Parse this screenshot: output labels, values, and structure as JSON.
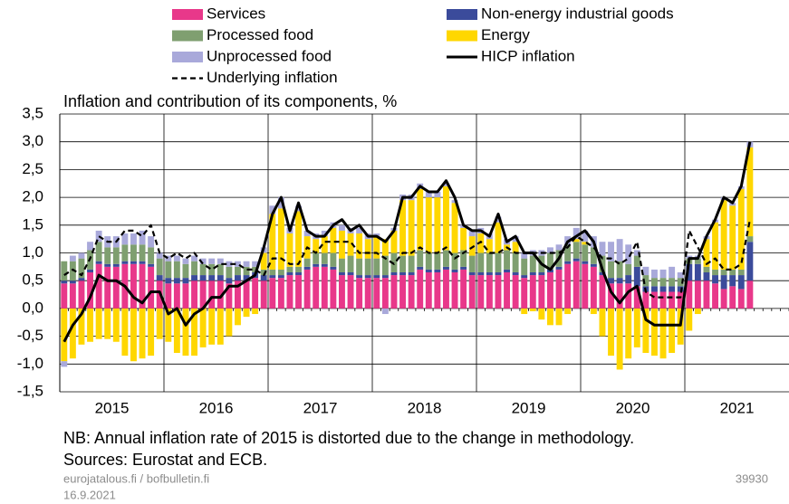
{
  "chart_data": {
    "type": "bar",
    "title": "Inflation and contribution of its components, %",
    "notes": [
      "NB: Annual inflation rate of 2015 is distorted due to the change in methodology.",
      "Sources: Eurostat and ECB."
    ],
    "footer": {
      "site": "eurojatalous.fi / bofbulletin.fi",
      "date": "16.9.2021",
      "code": "39930"
    },
    "years": [
      "2015",
      "2016",
      "2017",
      "2018",
      "2019",
      "2020",
      "2021"
    ],
    "ylim": [
      -1.5,
      3.5
    ],
    "yticks": [
      {
        "value": 3.5,
        "label": "3,5"
      },
      {
        "value": 3.0,
        "label": "3,0"
      },
      {
        "value": 2.5,
        "label": "2,5"
      },
      {
        "value": 2.0,
        "label": "2,0"
      },
      {
        "value": 1.5,
        "label": "1,5"
      },
      {
        "value": 1.0,
        "label": "1,0"
      },
      {
        "value": 0.5,
        "label": "0,5"
      },
      {
        "value": 0.0,
        "label": "0,0"
      },
      {
        "value": -0.5,
        "label": "-0,5"
      },
      {
        "value": -1.0,
        "label": "-1,0"
      },
      {
        "value": -1.5,
        "label": "-1,5"
      }
    ],
    "grid": true,
    "series": [
      {
        "name": "Services",
        "kind": "bar",
        "color": "#e8388a",
        "values": [
          0.45,
          0.45,
          0.5,
          0.65,
          0.8,
          0.75,
          0.75,
          0.8,
          0.8,
          0.8,
          0.75,
          0.5,
          0.45,
          0.45,
          0.45,
          0.5,
          0.5,
          0.5,
          0.5,
          0.45,
          0.5,
          0.5,
          0.55,
          0.5,
          0.55,
          0.55,
          0.6,
          0.6,
          0.7,
          0.75,
          0.75,
          0.7,
          0.6,
          0.6,
          0.55,
          0.55,
          0.55,
          0.55,
          0.6,
          0.6,
          0.6,
          0.7,
          0.65,
          0.65,
          0.7,
          0.65,
          0.7,
          0.6,
          0.6,
          0.6,
          0.6,
          0.65,
          0.6,
          0.55,
          0.6,
          0.6,
          0.65,
          0.7,
          0.8,
          0.85,
          0.8,
          0.75,
          0.6,
          0.45,
          0.45,
          0.45,
          0.4,
          0.3,
          0.3,
          0.3,
          0.3,
          0.3,
          0.5,
          0.5,
          0.5,
          0.45,
          0.35,
          0.4,
          0.35,
          0.5
        ]
      },
      {
        "name": "Non-energy industrial goods",
        "kind": "bar",
        "color": "#3b4b9b",
        "values": [
          0.05,
          0.05,
          0.05,
          0.05,
          0.05,
          0.05,
          0.05,
          0.05,
          0.05,
          0.05,
          0.05,
          0.1,
          0.1,
          0.1,
          0.1,
          0.1,
          0.1,
          0.1,
          0.1,
          0.1,
          0.1,
          0.1,
          0.1,
          0.1,
          0.05,
          0.05,
          0.05,
          0.05,
          0.05,
          0.05,
          0.05,
          0.05,
          0.05,
          0.05,
          0.05,
          0.05,
          0.05,
          0.05,
          0.05,
          0.05,
          0.05,
          0.05,
          0.05,
          0.05,
          0.05,
          0.05,
          0.05,
          0.05,
          0.05,
          0.05,
          0.05,
          0.05,
          0.05,
          0.05,
          0.05,
          0.05,
          0.05,
          0.05,
          0.05,
          0.05,
          0.05,
          0.05,
          0.05,
          0.1,
          0.1,
          0.15,
          0.35,
          0.1,
          0.1,
          0.1,
          0.1,
          0.1,
          0.3,
          0.3,
          0.15,
          0.15,
          0.25,
          0.2,
          0.25,
          0.7
        ]
      },
      {
        "name": "Processed food",
        "kind": "bar",
        "color": "#7f9f70",
        "values": [
          0.35,
          0.35,
          0.35,
          0.35,
          0.35,
          0.3,
          0.3,
          0.3,
          0.3,
          0.3,
          0.3,
          0.3,
          0.3,
          0.3,
          0.25,
          0.25,
          0.2,
          0.2,
          0.2,
          0.2,
          0.15,
          0.15,
          0.1,
          0.1,
          0.1,
          0.1,
          0.1,
          0.1,
          0.15,
          0.2,
          0.2,
          0.25,
          0.25,
          0.3,
          0.3,
          0.3,
          0.3,
          0.35,
          0.35,
          0.3,
          0.3,
          0.3,
          0.3,
          0.3,
          0.3,
          0.3,
          0.3,
          0.3,
          0.35,
          0.35,
          0.35,
          0.35,
          0.35,
          0.3,
          0.3,
          0.3,
          0.3,
          0.3,
          0.3,
          0.3,
          0.3,
          0.3,
          0.3,
          0.3,
          0.3,
          0.2,
          0.2,
          0.2,
          0.15,
          0.15,
          0.15,
          0.15,
          0.1,
          0.1,
          0.1,
          0.1,
          0.1,
          0.1,
          0.1,
          0.1
        ]
      },
      {
        "name": "Energy",
        "kind": "bar",
        "color": "#ffd700",
        "values": [
          -0.95,
          -0.9,
          -0.65,
          -0.6,
          -0.55,
          -0.55,
          -0.6,
          -0.85,
          -0.95,
          -0.9,
          -0.85,
          -0.55,
          -0.6,
          -0.8,
          -0.85,
          -0.85,
          -0.7,
          -0.65,
          -0.65,
          -0.5,
          -0.3,
          -0.15,
          -0.1,
          0.3,
          1.0,
          1.1,
          0.6,
          1.0,
          0.4,
          0.25,
          0.3,
          0.45,
          0.5,
          0.4,
          0.45,
          0.35,
          0.4,
          0.3,
          0.4,
          1.0,
          1.0,
          1.1,
          1.0,
          1.0,
          1.15,
          0.9,
          0.4,
          0.35,
          0.35,
          0.25,
          0.55,
          0.1,
          0.2,
          -0.1,
          -0.05,
          -0.2,
          -0.3,
          -0.3,
          -0.1,
          0.05,
          0.05,
          -0.1,
          -0.5,
          -0.85,
          -1.1,
          -0.9,
          -0.7,
          -0.8,
          -0.85,
          -0.9,
          -0.8,
          -0.65,
          -0.4,
          -0.1,
          0.5,
          0.85,
          1.25,
          1.15,
          1.45,
          1.6
        ]
      },
      {
        "name": "Unprocessed food",
        "kind": "bar",
        "color": "#a9a9da",
        "values": [
          -0.1,
          0.1,
          0.1,
          0.15,
          0.2,
          0.2,
          0.2,
          0.2,
          0.2,
          0.25,
          0.2,
          0.1,
          0.1,
          0.1,
          0.1,
          0.1,
          0.1,
          0.1,
          0.1,
          0.1,
          0.1,
          0.1,
          0.1,
          0.1,
          0.15,
          0.2,
          0.1,
          0.1,
          0.1,
          0.1,
          0.1,
          0.1,
          0.1,
          0.1,
          0.1,
          0.1,
          0.05,
          -0.1,
          0.05,
          0.1,
          0.1,
          0.1,
          0.1,
          0.1,
          0.05,
          0.05,
          0.05,
          0.1,
          0.1,
          0.1,
          0.1,
          0.1,
          0.1,
          0.1,
          0.1,
          0.1,
          0.1,
          0.1,
          0.15,
          0.2,
          0.2,
          0.2,
          0.25,
          0.35,
          0.4,
          0.35,
          0.1,
          0.15,
          0.15,
          0.15,
          0.2,
          0.1,
          0.05,
          0.05,
          0.05,
          0.05,
          0.05,
          0.05,
          0.05,
          0.1
        ]
      },
      {
        "name": "HICP inflation",
        "kind": "line",
        "color": "#000000",
        "dashed": false,
        "values": [
          -0.6,
          -0.3,
          -0.1,
          0.2,
          0.6,
          0.5,
          0.5,
          0.4,
          0.2,
          0.1,
          0.3,
          0.3,
          -0.1,
          0.0,
          -0.3,
          -0.1,
          0.0,
          0.2,
          0.2,
          0.4,
          0.4,
          0.5,
          0.6,
          1.1,
          1.7,
          2.0,
          1.4,
          1.9,
          1.4,
          1.3,
          1.3,
          1.5,
          1.6,
          1.4,
          1.5,
          1.3,
          1.3,
          1.2,
          1.4,
          2.0,
          2.0,
          2.2,
          2.1,
          2.1,
          2.3,
          2.0,
          1.5,
          1.4,
          1.4,
          1.3,
          1.7,
          1.2,
          1.3,
          1.0,
          1.0,
          0.8,
          0.7,
          0.9,
          1.2,
          1.3,
          1.4,
          1.2,
          0.7,
          0.3,
          0.1,
          0.3,
          0.4,
          -0.2,
          -0.3,
          -0.3,
          -0.3,
          -0.3,
          0.9,
          0.9,
          1.3,
          1.6,
          2.0,
          1.9,
          2.2,
          3.0
        ]
      },
      {
        "name": "Underlying inflation",
        "kind": "line",
        "color": "#000000",
        "dashed": true,
        "values": [
          0.6,
          0.7,
          0.6,
          0.9,
          1.3,
          1.2,
          1.2,
          1.4,
          1.4,
          1.3,
          1.5,
          1.0,
          0.9,
          1.0,
          0.9,
          1.0,
          0.8,
          0.7,
          0.8,
          0.8,
          0.8,
          0.7,
          0.7,
          0.6,
          0.9,
          0.9,
          0.8,
          0.8,
          1.1,
          1.0,
          1.2,
          1.2,
          1.2,
          1.2,
          1.0,
          1.0,
          1.0,
          0.9,
          0.8,
          1.0,
          1.0,
          1.1,
          1.0,
          1.0,
          1.1,
          0.9,
          1.0,
          1.1,
          1.2,
          1.0,
          1.0,
          1.1,
          1.0,
          1.0,
          1.0,
          1.0,
          1.0,
          1.0,
          1.1,
          1.3,
          1.2,
          1.1,
          0.9,
          0.9,
          0.8,
          0.9,
          1.2,
          0.3,
          0.2,
          0.2,
          0.2,
          0.2,
          1.4,
          1.1,
          0.8,
          0.9,
          0.7,
          0.7,
          0.8,
          1.6
        ]
      }
    ]
  }
}
